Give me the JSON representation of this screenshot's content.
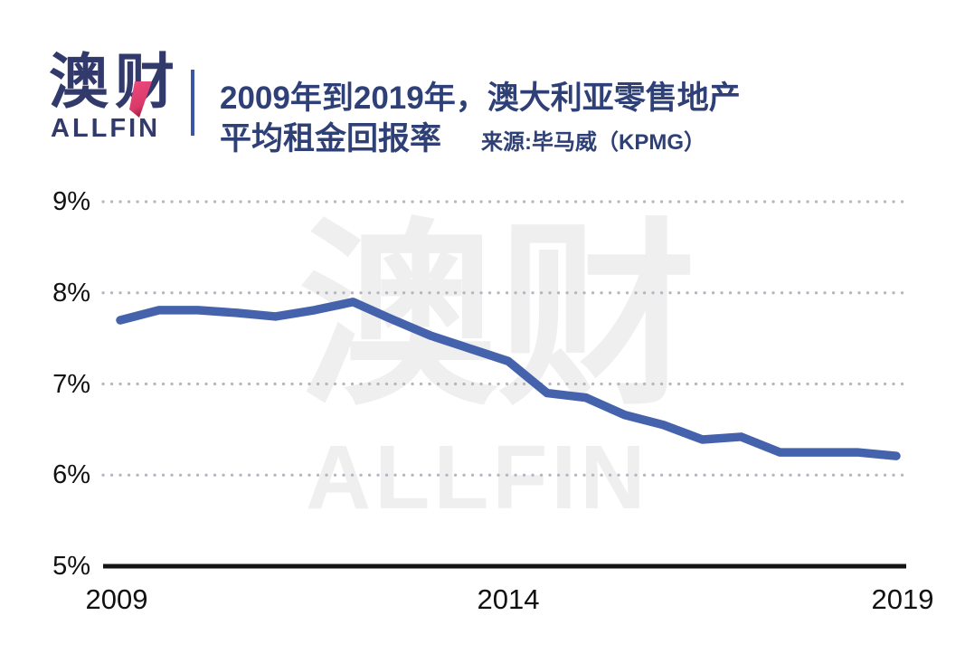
{
  "header": {
    "logo": {
      "cn": "澳财",
      "en": "ALLFIN"
    },
    "title_line1": "2009年到2019年，澳大利亚零售地产",
    "title_line2": "平均租金回报率",
    "source": "来源:毕马威（KPMG）"
  },
  "watermark": {
    "cn": "澳财",
    "en": "ALLFIN"
  },
  "colors": {
    "logo_navy": "#323a6b",
    "title_navy": "#2e4076",
    "accent_pink": "#ee4a7e",
    "accent_pink_dark": "#a62046",
    "line_blue": "#4563ac",
    "grid_dot": "#b6b6bf",
    "axis_black": "#141414",
    "watermark_gray": "#efefef",
    "tick_text": "#111111"
  },
  "chart_data": {
    "type": "line",
    "title": "2009年到2019年，澳大利亚零售地产平均租金回报率",
    "source": "来源:毕马威（KPMG）",
    "unit": "%",
    "x": [
      2009,
      2009.5,
      2010,
      2010.5,
      2011,
      2011.5,
      2012,
      2012.5,
      2013,
      2013.5,
      2014,
      2014.5,
      2015,
      2015.5,
      2016,
      2016.5,
      2017,
      2017.5,
      2018,
      2018.5,
      2019
    ],
    "series": [
      {
        "name": "平均租金回报率",
        "color": "#4563ac",
        "values": [
          7.7,
          7.81,
          7.81,
          7.78,
          7.74,
          7.81,
          7.9,
          7.71,
          7.53,
          7.39,
          7.25,
          6.9,
          6.85,
          6.66,
          6.55,
          6.39,
          6.42,
          6.25,
          6.25,
          6.25,
          6.21
        ]
      }
    ],
    "xlim": [
      2009,
      2019
    ],
    "ylim": [
      5,
      9
    ],
    "yticks": [
      {
        "value": 9,
        "label": "9%"
      },
      {
        "value": 8,
        "label": "8%"
      },
      {
        "value": 7,
        "label": "7%"
      },
      {
        "value": 6,
        "label": "6%"
      },
      {
        "value": 5,
        "label": "5%"
      }
    ],
    "xticks": [
      {
        "value": 2009,
        "label": "2009"
      },
      {
        "value": 2014,
        "label": "2014"
      },
      {
        "value": 2019,
        "label": "2019"
      }
    ],
    "grid": "horizontal-dotted",
    "legend": "none",
    "baseline_axis": 5
  }
}
